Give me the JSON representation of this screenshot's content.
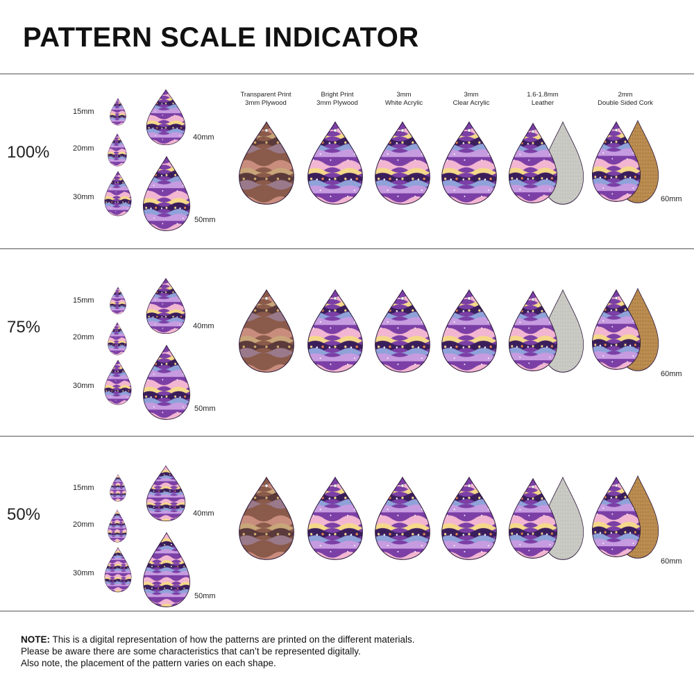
{
  "title": "PATTERN SCALE INDICATOR",
  "material_headers": [
    "Transparent Print\n3mm Plywood",
    "Bright Print\n3mm Plywood",
    "3mm\nWhite Acrylic",
    "3mm\nClear Acrylic",
    "1.6-1.8mm\nLeather",
    "2mm\nDouble Sided Cork"
  ],
  "sizes": {
    "s15": "15mm",
    "s20": "20mm",
    "s30": "30mm",
    "s40": "40mm",
    "s50": "50mm",
    "s60": "60mm"
  },
  "scales": [
    "100%",
    "75%",
    "50%"
  ],
  "note": {
    "label": "NOTE:",
    "line1": " This is a digital representation of how the patterns are printed on the different materials.",
    "line2": "Please be aware there are some characteristics that can’t be represented digitally.",
    "line3": "Also note, the placement of the pattern varies on each shape."
  },
  "colors": {
    "purple_dark": "#3a1e5c",
    "purple": "#7b3fa6",
    "lilac": "#c79be0",
    "pink": "#f2b6d2",
    "yellow": "#f5d98a",
    "blue": "#8fa2d9",
    "orange": "#f08a4b",
    "wood": "#8a5a3f",
    "leather_back": "#c9c9c3",
    "cork_back": "#b88a4e"
  }
}
